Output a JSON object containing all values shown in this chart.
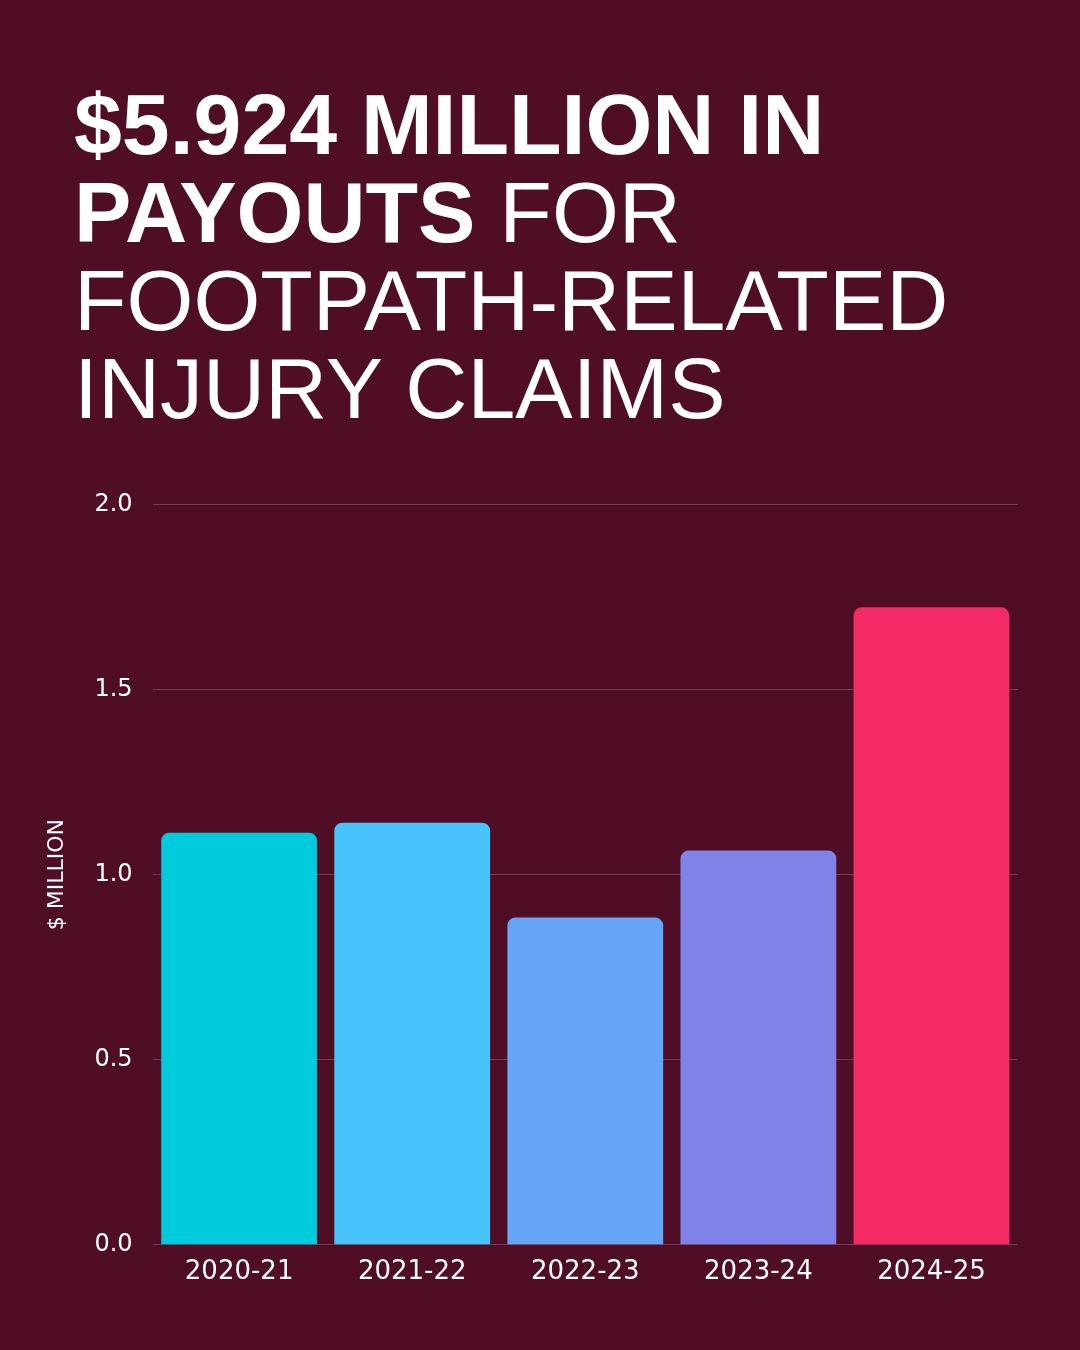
{
  "chart_data": {
    "type": "bar",
    "title": "$5.924 MILLION IN PAYOUTS",
    "subtitle": "FOR FOOTPATH-RELATED INJURY CLAIMS",
    "ylabel": "$ MILLION",
    "categories": [
      "2020-21",
      "2021-22",
      "2022-23",
      "2023-24",
      "2024-25"
    ],
    "values": [
      1.113,
      1.14,
      0.884,
      1.065,
      1.722
    ],
    "colors": [
      "#00cbdc",
      "#48c3fc",
      "#65a6fa",
      "#7f82e6",
      "#f42a64"
    ],
    "ylim": [
      0,
      2
    ],
    "yticks": [
      {
        "value": 0,
        "label": "0.0"
      },
      {
        "value": 0.5,
        "label": "0.5"
      },
      {
        "value": 1,
        "label": "1.0"
      },
      {
        "value": 1.5,
        "label": "1.5"
      },
      {
        "value": 2,
        "label": "2.0"
      }
    ],
    "grid": "y",
    "legend": false
  }
}
